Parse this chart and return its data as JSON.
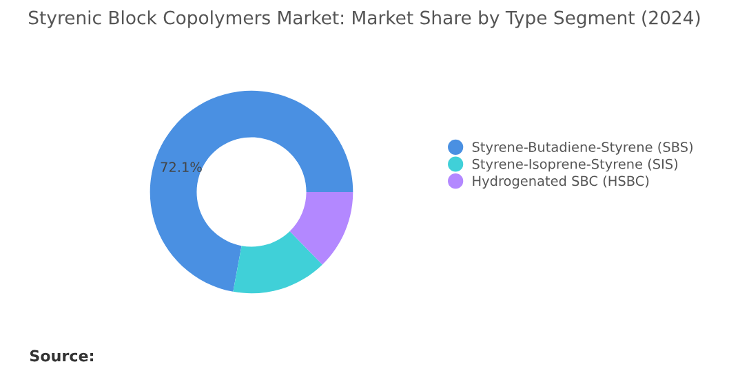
{
  "chart_data": {
    "type": "donut",
    "title": "Styrenic Block Copolymers Market: Market Share by Type Segment (2024)",
    "categories": [
      "Styrene-Butadiene-Styrene (SBS)",
      "Styrene-Isoprene-Styrene (SIS)",
      "Hydrogenated SBC (HSBC)"
    ],
    "values": [
      72.1,
      15.2,
      12.7
    ],
    "colors": [
      "#4a90e2",
      "#40d0d8",
      "#b388ff"
    ],
    "value_labels": [
      "72.1%",
      null,
      null
    ],
    "annotations": [
      "Source:"
    ],
    "legend": "right"
  }
}
